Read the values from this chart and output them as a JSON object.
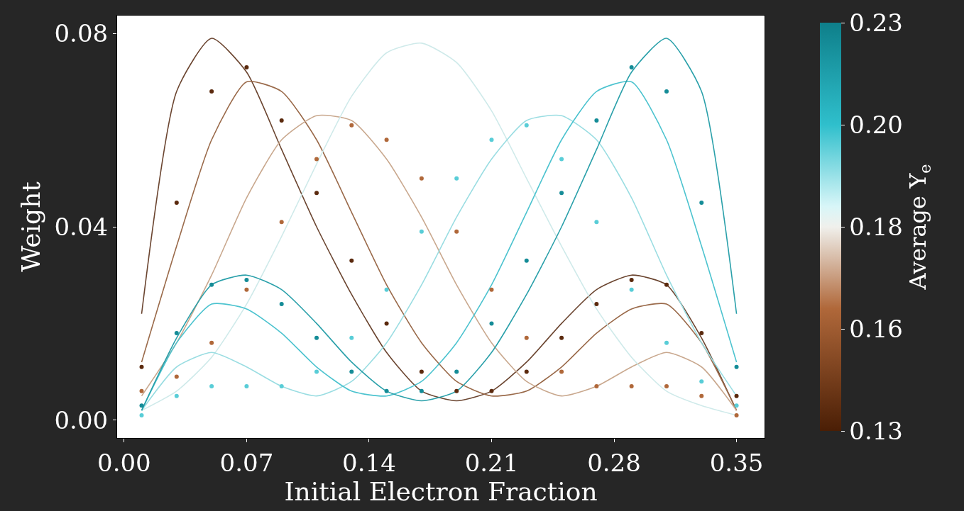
{
  "chart_data": {
    "type": "line",
    "xlabel": "Initial Electron Fraction",
    "ylabel": "Weight",
    "clabel": "Average Y$_{e}$",
    "x": [
      0.01,
      0.03,
      0.05,
      0.07,
      0.09,
      0.11,
      0.13,
      0.15,
      0.17,
      0.19,
      0.21,
      0.23,
      0.25,
      0.27,
      0.29,
      0.31,
      0.33,
      0.35
    ],
    "series": [
      {
        "color": "#6b4530",
        "values": [
          0.022,
          0.068,
          0.079,
          0.072,
          0.056,
          0.04,
          0.026,
          0.014,
          0.006,
          0.004,
          0.006,
          0.012,
          0.02,
          0.027,
          0.03,
          0.028,
          0.017,
          0.002
        ]
      },
      {
        "color": "#9a6a4a",
        "values": [
          0.012,
          0.036,
          0.058,
          0.07,
          0.068,
          0.058,
          0.043,
          0.028,
          0.016,
          0.008,
          0.005,
          0.006,
          0.011,
          0.018,
          0.023,
          0.024,
          0.016,
          0.002
        ]
      },
      {
        "color": "#c9a88e",
        "values": [
          0.005,
          0.016,
          0.03,
          0.046,
          0.058,
          0.063,
          0.062,
          0.054,
          0.042,
          0.028,
          0.016,
          0.008,
          0.005,
          0.007,
          0.011,
          0.014,
          0.011,
          0.002
        ]
      },
      {
        "color": "#cfeaea",
        "values": [
          0.002,
          0.006,
          0.013,
          0.024,
          0.038,
          0.053,
          0.067,
          0.076,
          0.078,
          0.074,
          0.064,
          0.05,
          0.036,
          0.023,
          0.013,
          0.006,
          0.003,
          0.001
        ]
      },
      {
        "color": "#9adde2",
        "values": [
          0.002,
          0.011,
          0.014,
          0.011,
          0.007,
          0.005,
          0.008,
          0.016,
          0.028,
          0.042,
          0.054,
          0.062,
          0.063,
          0.058,
          0.046,
          0.03,
          0.016,
          0.005
        ]
      },
      {
        "color": "#4cc3cf",
        "values": [
          0.002,
          0.016,
          0.024,
          0.023,
          0.018,
          0.011,
          0.006,
          0.005,
          0.008,
          0.016,
          0.028,
          0.043,
          0.058,
          0.068,
          0.07,
          0.058,
          0.036,
          0.012
        ]
      },
      {
        "color": "#2aa0aa",
        "values": [
          0.002,
          0.017,
          0.028,
          0.03,
          0.027,
          0.02,
          0.012,
          0.006,
          0.004,
          0.006,
          0.014,
          0.026,
          0.04,
          0.056,
          0.072,
          0.079,
          0.068,
          0.022
        ]
      },
      {
        "type": "scatter",
        "marker": "circle",
        "cvalues": [
          0.135,
          0.135,
          0.135,
          0.135,
          0.135,
          0.135,
          0.135,
          0.135,
          0.135,
          0.135,
          0.135,
          0.135,
          0.135,
          0.135,
          0.135,
          0.135,
          0.135,
          0.135
        ],
        "values": [
          0.011,
          0.045,
          0.068,
          0.073,
          0.062,
          0.047,
          0.033,
          0.02,
          0.01,
          0.006,
          0.006,
          0.01,
          0.017,
          0.024,
          0.029,
          0.028,
          0.018,
          0.005
        ]
      },
      {
        "type": "scatter",
        "marker": "circle",
        "cvalues": [
          0.16,
          0.16,
          0.16,
          0.16,
          0.16,
          0.16,
          0.16,
          0.16,
          0.16,
          0.16,
          0.16,
          0.16,
          0.16,
          0.16,
          0.16,
          0.16,
          0.16,
          0.16
        ],
        "values": [
          0.006,
          0.009,
          0.016,
          0.027,
          0.041,
          0.054,
          0.061,
          0.058,
          0.05,
          0.039,
          0.027,
          0.017,
          0.01,
          0.007,
          0.007,
          0.007,
          0.005,
          0.001
        ]
      },
      {
        "type": "scatter",
        "marker": "circle",
        "cvalues": [
          0.2,
          0.2,
          0.2,
          0.2,
          0.2,
          0.2,
          0.2,
          0.2,
          0.2,
          0.2,
          0.2,
          0.2,
          0.2,
          0.2,
          0.2,
          0.2,
          0.2,
          0.2
        ],
        "values": [
          0.001,
          0.005,
          0.007,
          0.007,
          0.007,
          0.01,
          0.017,
          0.027,
          0.039,
          0.05,
          0.058,
          0.061,
          0.054,
          0.041,
          0.027,
          0.016,
          0.008,
          0.003
        ]
      },
      {
        "type": "scatter",
        "marker": "circle",
        "cvalues": [
          0.225,
          0.225,
          0.225,
          0.225,
          0.225,
          0.225,
          0.225,
          0.225,
          0.225,
          0.225,
          0.225,
          0.225,
          0.225,
          0.225,
          0.225,
          0.225,
          0.225,
          0.225
        ],
        "values": [
          0.003,
          0.018,
          0.028,
          0.029,
          0.024,
          0.017,
          0.01,
          0.006,
          0.006,
          0.01,
          0.02,
          0.033,
          0.047,
          0.062,
          0.073,
          0.068,
          0.045,
          0.011
        ]
      }
    ],
    "xlim": [
      -0.004,
      0.366
    ],
    "xticks": [
      {
        "value": 0,
        "label": "0.00"
      },
      0.07,
      0.14,
      0.21,
      0.28,
      0.35
    ],
    "ylim": [
      -0.0037,
      0.0837
    ],
    "yticks": [
      {
        "value": 0,
        "label": "0.00"
      },
      0.04,
      0.08
    ],
    "clim": [
      0.13,
      0.23
    ],
    "cticks": [
      0.13,
      {
        "value": 0.155,
        "label": "0.16"
      },
      0.18,
      {
        "value": 0.205,
        "label": "0.20"
      },
      0.23
    ],
    "grid": false
  }
}
